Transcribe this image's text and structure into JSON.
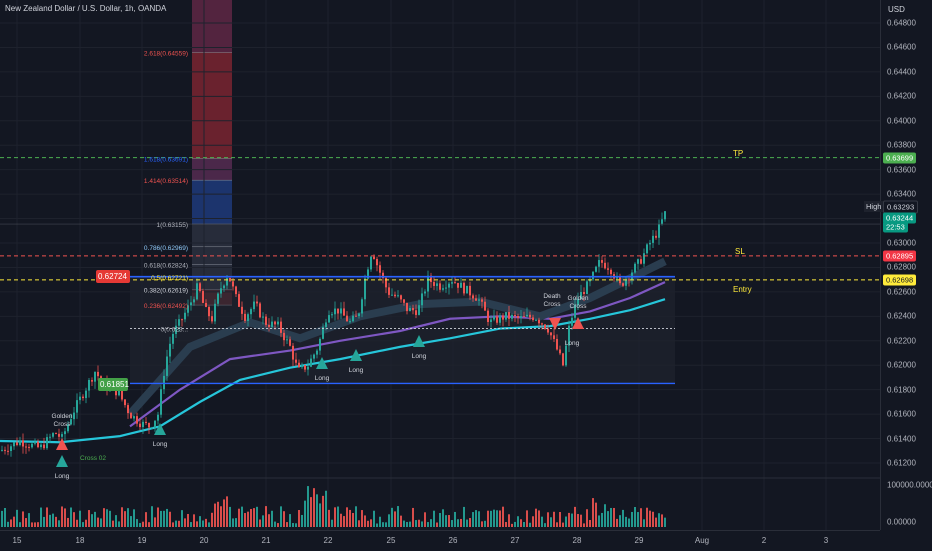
{
  "header": {
    "title": "New Zealand Dollar / U.S. Dollar, 1h, OANDA"
  },
  "price_axis": {
    "currency": "USD",
    "ticks": [
      "0.64800",
      "0.64600",
      "0.64400",
      "0.64200",
      "0.64000",
      "0.63800",
      "0.63600",
      "0.63400",
      "0.63200",
      "0.63000",
      "0.62800",
      "0.62600",
      "0.62400",
      "0.62200",
      "0.62000",
      "0.61800",
      "0.61600",
      "0.61400",
      "0.61200"
    ],
    "tags": {
      "tp": "0.63699",
      "high_label": "High",
      "high": "0.63293",
      "last": "0.63244",
      "countdown": "22:53",
      "sl": "0.62895",
      "entry": "0.62698"
    }
  },
  "volume_axis": {
    "ticks": [
      "100000.00000",
      "0.00000"
    ]
  },
  "time_axis": {
    "ticks": [
      "15",
      "18",
      "19",
      "20",
      "21",
      "22",
      "25",
      "26",
      "27",
      "28",
      "29",
      "Aug",
      "2",
      "3"
    ]
  },
  "fib": {
    "levels": [
      "2.618(0.64559)",
      "1.618(0.63691)",
      "1.414(0.63514)",
      "1(0.63155)",
      "0.786(0.62969)",
      "0.618(0.62824)",
      "0.5(0.62721)",
      "0.382(0.62619)",
      "0.236(0.62492)",
      "0(0.623..."
    ]
  },
  "levels": {
    "tp_label": "TP",
    "sl_label": "SL",
    "entry_label": "Entry",
    "box_top": "0.62724",
    "box_bottom": "0.61851"
  },
  "signals": {
    "long": "Long",
    "golden_cross": "Golden\nCross",
    "death_cross": "Death\nCross",
    "cross02": "Cross 02"
  },
  "colors": {
    "bg": "#131722",
    "up": "#26a69a",
    "down": "#ef5350",
    "tp": "#4caf50",
    "sl": "#ef5350",
    "entry": "#ffeb3b",
    "blue": "#2962ff"
  }
}
